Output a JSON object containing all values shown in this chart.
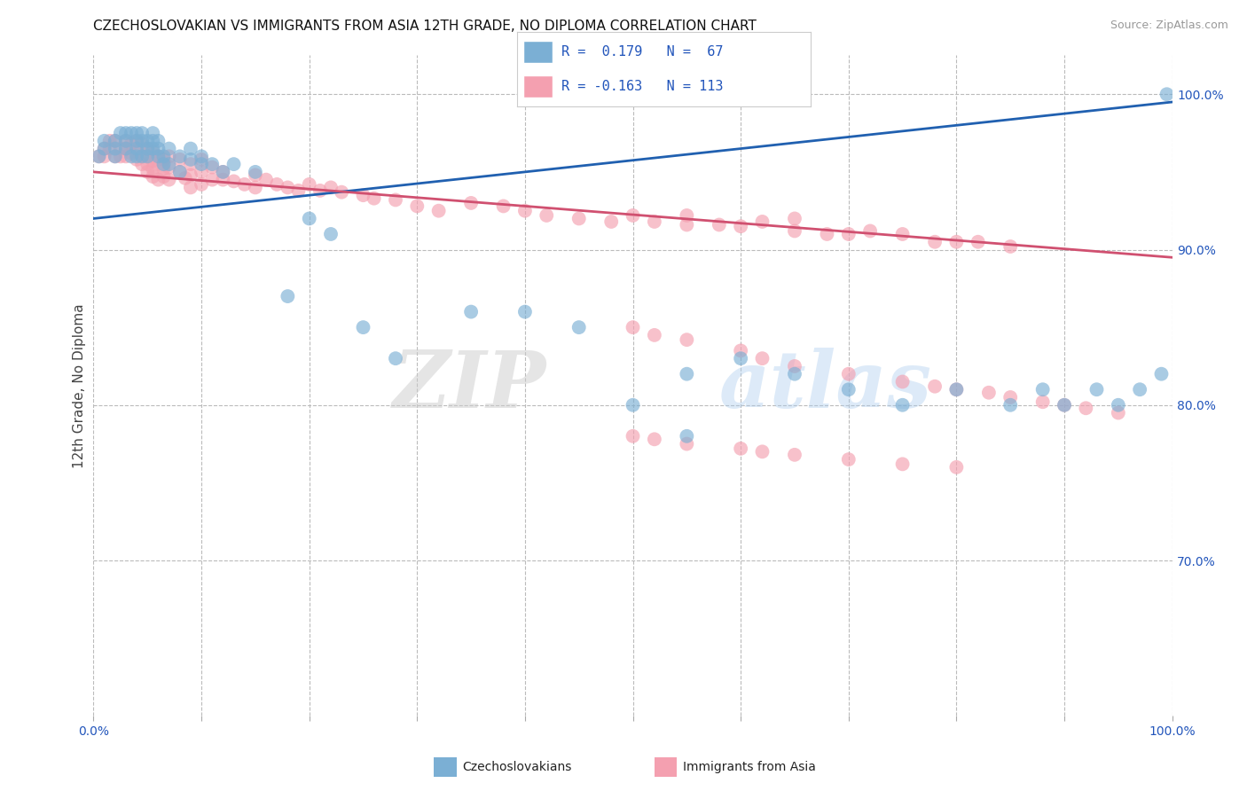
{
  "title": "CZECHOSLOVAKIAN VS IMMIGRANTS FROM ASIA 12TH GRADE, NO DIPLOMA CORRELATION CHART",
  "source": "Source: ZipAtlas.com",
  "ylabel": "12th Grade, No Diploma",
  "color_czech": "#7bafd4",
  "color_asia": "#f4a0b0",
  "line_color_czech": "#2060b0",
  "line_color_asia": "#d05070",
  "watermark_zip": "ZIP",
  "watermark_atlas": "atlas",
  "xlim": [
    0.0,
    1.0
  ],
  "ylim": [
    0.6,
    1.025
  ],
  "czech_line_x0": 0.0,
  "czech_line_y0": 0.92,
  "czech_line_x1": 1.0,
  "czech_line_y1": 0.995,
  "asia_line_x0": 0.0,
  "asia_line_y0": 0.95,
  "asia_line_x1": 1.0,
  "asia_line_y1": 0.895,
  "czech_x": [
    0.005,
    0.01,
    0.01,
    0.02,
    0.02,
    0.02,
    0.025,
    0.03,
    0.03,
    0.03,
    0.035,
    0.035,
    0.04,
    0.04,
    0.04,
    0.04,
    0.045,
    0.045,
    0.045,
    0.05,
    0.05,
    0.05,
    0.055,
    0.055,
    0.055,
    0.06,
    0.06,
    0.06,
    0.065,
    0.065,
    0.07,
    0.07,
    0.08,
    0.08,
    0.09,
    0.09,
    0.1,
    0.1,
    0.11,
    0.12,
    0.13,
    0.15,
    0.18,
    0.2,
    0.22,
    0.25,
    0.28,
    0.35,
    0.4,
    0.45,
    0.5,
    0.55,
    0.55,
    0.6,
    0.65,
    0.7,
    0.75,
    0.8,
    0.85,
    0.88,
    0.9,
    0.93,
    0.95,
    0.97,
    0.99,
    0.995
  ],
  "czech_y": [
    0.96,
    0.97,
    0.965,
    0.97,
    0.965,
    0.96,
    0.975,
    0.975,
    0.97,
    0.965,
    0.975,
    0.96,
    0.975,
    0.97,
    0.965,
    0.96,
    0.975,
    0.97,
    0.96,
    0.97,
    0.965,
    0.96,
    0.975,
    0.97,
    0.965,
    0.97,
    0.965,
    0.96,
    0.96,
    0.955,
    0.965,
    0.955,
    0.96,
    0.95,
    0.965,
    0.958,
    0.96,
    0.955,
    0.955,
    0.95,
    0.955,
    0.95,
    0.87,
    0.92,
    0.91,
    0.85,
    0.83,
    0.86,
    0.86,
    0.85,
    0.8,
    0.82,
    0.78,
    0.83,
    0.82,
    0.81,
    0.8,
    0.81,
    0.8,
    0.81,
    0.8,
    0.81,
    0.8,
    0.81,
    0.82,
    1.0
  ],
  "asia_x": [
    0.005,
    0.01,
    0.01,
    0.015,
    0.015,
    0.02,
    0.02,
    0.025,
    0.025,
    0.03,
    0.03,
    0.03,
    0.035,
    0.035,
    0.04,
    0.04,
    0.04,
    0.045,
    0.045,
    0.045,
    0.05,
    0.05,
    0.05,
    0.05,
    0.055,
    0.055,
    0.055,
    0.055,
    0.06,
    0.06,
    0.06,
    0.065,
    0.065,
    0.065,
    0.07,
    0.07,
    0.07,
    0.08,
    0.08,
    0.085,
    0.09,
    0.09,
    0.09,
    0.1,
    0.1,
    0.1,
    0.11,
    0.11,
    0.12,
    0.12,
    0.13,
    0.14,
    0.15,
    0.15,
    0.16,
    0.17,
    0.18,
    0.19,
    0.2,
    0.21,
    0.22,
    0.23,
    0.25,
    0.26,
    0.28,
    0.3,
    0.32,
    0.35,
    0.38,
    0.4,
    0.42,
    0.45,
    0.48,
    0.5,
    0.52,
    0.55,
    0.55,
    0.58,
    0.6,
    0.62,
    0.65,
    0.65,
    0.68,
    0.7,
    0.72,
    0.75,
    0.78,
    0.8,
    0.82,
    0.85,
    0.5,
    0.52,
    0.55,
    0.6,
    0.62,
    0.65,
    0.7,
    0.75,
    0.78,
    0.8,
    0.83,
    0.85,
    0.88,
    0.9,
    0.92,
    0.95,
    0.5,
    0.52,
    0.55,
    0.6,
    0.62,
    0.65,
    0.7,
    0.75,
    0.8
  ],
  "asia_y": [
    0.96,
    0.965,
    0.96,
    0.97,
    0.965,
    0.97,
    0.96,
    0.965,
    0.96,
    0.97,
    0.965,
    0.96,
    0.968,
    0.962,
    0.97,
    0.963,
    0.958,
    0.968,
    0.96,
    0.955,
    0.965,
    0.96,
    0.955,
    0.95,
    0.963,
    0.957,
    0.952,
    0.947,
    0.96,
    0.955,
    0.945,
    0.958,
    0.952,
    0.947,
    0.96,
    0.953,
    0.945,
    0.958,
    0.95,
    0.946,
    0.955,
    0.948,
    0.94,
    0.958,
    0.95,
    0.942,
    0.953,
    0.945,
    0.95,
    0.945,
    0.944,
    0.942,
    0.948,
    0.94,
    0.945,
    0.942,
    0.94,
    0.938,
    0.942,
    0.938,
    0.94,
    0.937,
    0.935,
    0.933,
    0.932,
    0.928,
    0.925,
    0.93,
    0.928,
    0.925,
    0.922,
    0.92,
    0.918,
    0.922,
    0.918,
    0.922,
    0.916,
    0.916,
    0.915,
    0.918,
    0.92,
    0.912,
    0.91,
    0.91,
    0.912,
    0.91,
    0.905,
    0.905,
    0.905,
    0.902,
    0.85,
    0.845,
    0.842,
    0.835,
    0.83,
    0.825,
    0.82,
    0.815,
    0.812,
    0.81,
    0.808,
    0.805,
    0.802,
    0.8,
    0.798,
    0.795,
    0.78,
    0.778,
    0.775,
    0.772,
    0.77,
    0.768,
    0.765,
    0.762,
    0.76
  ]
}
